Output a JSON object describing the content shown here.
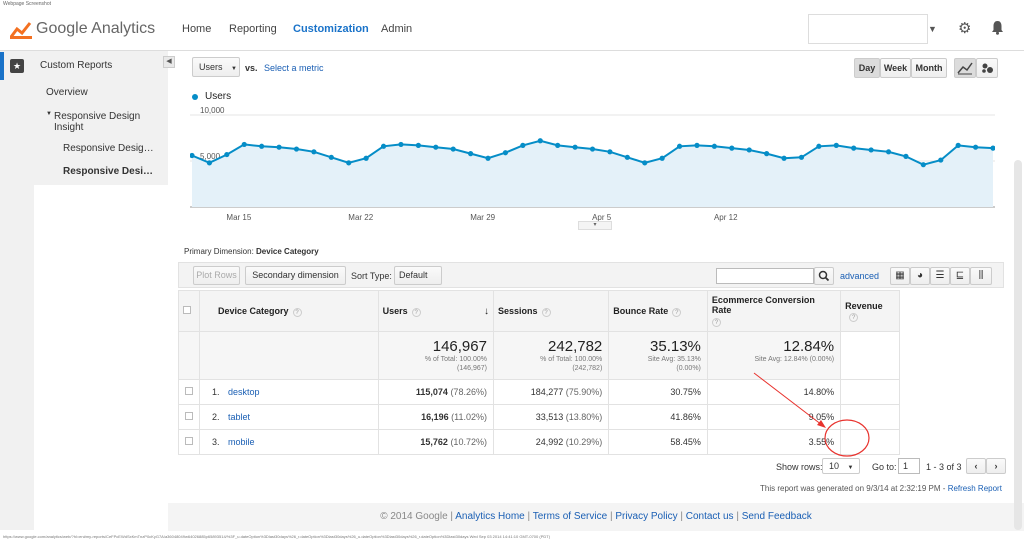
{
  "caption": {
    "top": "Webpage Screenshot",
    "bottom": "https://www.google.com/analytics/web/?hl=en#my-reports/CeFPcEWdSxKmTnzP0cKyG7A/a36048049w64026885p65893514/%3F_u.dateOption%3Dlast30days%26_r.dateOption%3Dlast30days%26_u.dateOption%3Dlast30days%26_r.dateOption%3Dlast30days Wed Sep 03 2014 14:41:10 GMT-0700 (PDT)"
  },
  "header": {
    "logo_text": "Google Analytics",
    "nav": [
      "Home",
      "Reporting",
      "Customization",
      "Admin"
    ],
    "active_nav": "Customization"
  },
  "sidebar": {
    "section": "Custom Reports",
    "items": [
      "Overview",
      "Responsive Design Insight",
      "Responsive Desig…",
      "Responsive Desi…"
    ]
  },
  "toolbar": {
    "metric_select": "Users",
    "vs": "vs.",
    "select_metric": "Select a metric",
    "range_buttons": [
      "Day",
      "Week",
      "Month"
    ],
    "active_range": "Day"
  },
  "chart_data": {
    "type": "line",
    "series": [
      {
        "name": "Users",
        "values": [
          5600,
          4800,
          5700,
          6800,
          6600,
          6500,
          6300,
          6000,
          5400,
          4800,
          5300,
          6600,
          6800,
          6700,
          6500,
          6300,
          5800,
          5300,
          5900,
          6700,
          7200,
          6700,
          6500,
          6300,
          6000,
          5400,
          4800,
          5300,
          6600,
          6700,
          6600,
          6400,
          6200,
          5800,
          5300,
          5400,
          6600,
          6700,
          6400,
          6200,
          6000,
          5500,
          4600,
          5100,
          6700,
          6500,
          6400
        ]
      }
    ],
    "x_ticks": [
      "Mar 15",
      "Mar 22",
      "Mar 29",
      "Apr 5",
      "Apr 12"
    ],
    "y_ticks": [
      "5,000",
      "10,000"
    ],
    "ylim": [
      0,
      10000
    ],
    "color": "#058dc7",
    "fill": "#e4f1f9"
  },
  "primary_dimension": {
    "label": "Primary Dimension:",
    "value": "Device Category"
  },
  "table_toolbar": {
    "plot_rows": "Plot Rows",
    "secondary_dimension": "Secondary dimension",
    "sort_type_label": "Sort Type:",
    "sort_type_value": "Default",
    "advanced": "advanced"
  },
  "table": {
    "columns": [
      "Device Category",
      "Users",
      "Sessions",
      "Bounce Rate",
      "Ecommerce Conversion Rate",
      "Revenue"
    ],
    "totals": {
      "users": "146,967",
      "users_sub1": "% of Total: 100.00%",
      "users_sub2": "(146,967)",
      "sessions": "242,782",
      "sessions_sub1": "% of Total: 100.00%",
      "sessions_sub2": "(242,782)",
      "bounce": "35.13%",
      "bounce_sub1": "Site Avg: 35.13%",
      "bounce_sub2": "(0.00%)",
      "conv": "12.84%",
      "conv_sub1": "Site Avg: 12.84% (0.00%)"
    },
    "rows": [
      {
        "num": "1.",
        "device": "desktop",
        "users": "115,074",
        "users_pct": "(78.26%)",
        "sessions": "184,277",
        "sessions_pct": "(75.90%)",
        "bounce": "30.75%",
        "conv": "14.80%"
      },
      {
        "num": "2.",
        "device": "tablet",
        "users": "16,196",
        "users_pct": "(11.02%)",
        "sessions": "33,513",
        "sessions_pct": "(13.80%)",
        "bounce": "41.86%",
        "conv": "9.05%"
      },
      {
        "num": "3.",
        "device": "mobile",
        "users": "15,762",
        "users_pct": "(10.72%)",
        "sessions": "24,992",
        "sessions_pct": "(10.29%)",
        "bounce": "58.45%",
        "conv": "3.55%"
      }
    ]
  },
  "pagination": {
    "show_rows": "Show rows:",
    "rows_value": "10",
    "goto": "Go to:",
    "goto_value": "1",
    "range": "1 - 3 of 3"
  },
  "generated": {
    "text": "This report was generated on 9/3/14 at 2:32:19 PM -",
    "refresh": "Refresh Report"
  },
  "footer": {
    "copyright": "© 2014 Google |",
    "links": [
      "Analytics Home",
      "Terms of Service",
      "Privacy Policy",
      "Contact us",
      "Send Feedback"
    ]
  },
  "colors": {
    "accent": "#1a73c9",
    "annotation": "#e8322d"
  }
}
